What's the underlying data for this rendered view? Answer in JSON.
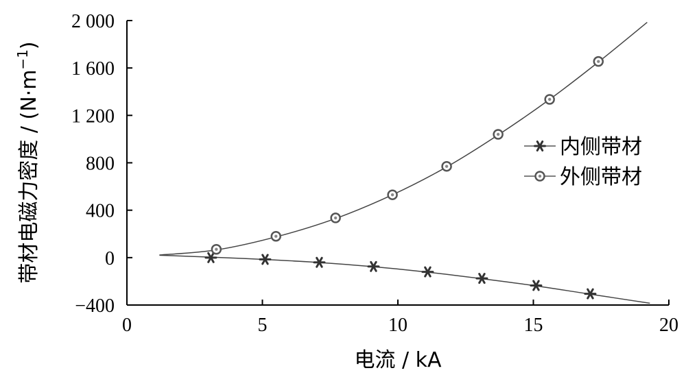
{
  "chart_data": {
    "type": "line",
    "xlabel": "电流 / kA",
    "ylabel_main": "带材电磁力密度 / (N·m",
    "ylabel_sup": "−1",
    "ylabel_close": ")",
    "xlim": [
      0,
      20
    ],
    "ylim": [
      -400,
      2000
    ],
    "x_ticks": [
      0,
      5,
      10,
      15,
      20
    ],
    "x_tick_labels": [
      "0",
      "5",
      "10",
      "15",
      "20"
    ],
    "y_ticks": [
      -400,
      0,
      400,
      800,
      1200,
      1600,
      2000
    ],
    "y_tick_labels": [
      "−400",
      "0",
      "400",
      "800",
      "1 200",
      "1 600",
      "2 000"
    ],
    "legend_position": "right",
    "grid": false,
    "series": [
      {
        "name": "内侧带材",
        "marker": "asterisk",
        "x": [
          3.1,
          5.1,
          7.1,
          9.1,
          11.1,
          13.1,
          15.1,
          17.1
        ],
        "y": [
          0,
          -15,
          -40,
          -75,
          -120,
          -175,
          -235,
          -305
        ],
        "curve_x": [
          1.2,
          3,
          5,
          7,
          9,
          11,
          13,
          15,
          17,
          19.3
        ],
        "curve_y": [
          20,
          5,
          -15,
          -40,
          -75,
          -120,
          -175,
          -235,
          -305,
          -385
        ]
      },
      {
        "name": "外侧带材",
        "marker": "circle",
        "x": [
          3.3,
          5.5,
          7.7,
          9.8,
          11.8,
          13.7,
          15.6,
          17.4
        ],
        "y": [
          70,
          180,
          335,
          530,
          770,
          1040,
          1335,
          1655
        ],
        "curve_x": [
          1.2,
          3.3,
          5.5,
          7.7,
          9.8,
          11.8,
          13.7,
          15.6,
          17.4,
          19.2
        ],
        "curve_y": [
          22,
          65,
          175,
          330,
          530,
          765,
          1035,
          1335,
          1650,
          1985
        ]
      }
    ]
  }
}
